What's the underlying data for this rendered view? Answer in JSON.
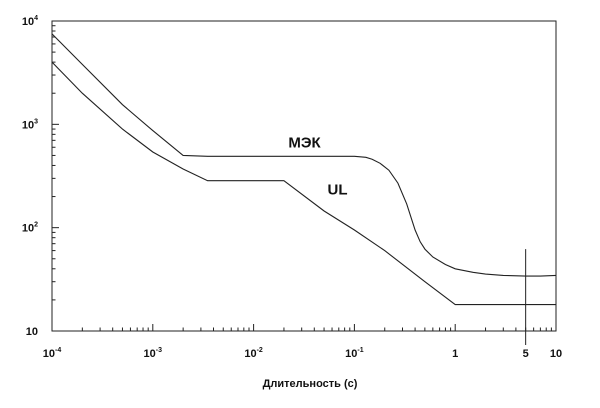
{
  "chart_data": {
    "type": "line",
    "x_scale": "log",
    "y_scale": "log",
    "xlabel": "Длительность (с)",
    "ylabel": "",
    "xlim": [
      0.0001,
      10
    ],
    "ylim": [
      10,
      10000
    ],
    "x_ticks": [
      {
        "value": 0.0001,
        "base": "10",
        "exp": "-4"
      },
      {
        "value": 0.001,
        "base": "10",
        "exp": "-3"
      },
      {
        "value": 0.01,
        "base": "10",
        "exp": "-2"
      },
      {
        "value": 0.1,
        "base": "10",
        "exp": "-1"
      },
      {
        "value": 1,
        "base": "1",
        "exp": ""
      },
      {
        "value": 5,
        "base": "5",
        "exp": ""
      },
      {
        "value": 10,
        "base": "10",
        "exp": ""
      }
    ],
    "y_ticks": [
      {
        "value": 10,
        "base": "10",
        "exp": ""
      },
      {
        "value": 100,
        "base": "10",
        "exp": "2"
      },
      {
        "value": 1000,
        "base": "10",
        "exp": "3"
      },
      {
        "value": 10000,
        "base": "10",
        "exp": "4"
      }
    ],
    "reference_lines": [
      {
        "axis": "x",
        "value": 5
      }
    ],
    "series": [
      {
        "name": "МЭК",
        "label_at": {
          "x": 0.032,
          "y": 600
        },
        "x": [
          0.0001,
          0.0002,
          0.0005,
          0.001,
          0.002,
          0.0035,
          0.01,
          0.03,
          0.1,
          0.13,
          0.15,
          0.18,
          0.22,
          0.27,
          0.33,
          0.4,
          0.45,
          0.5,
          0.6,
          0.8,
          1,
          1.5,
          2,
          3,
          5,
          7,
          10
        ],
        "values": [
          7500,
          3800,
          1550,
          870,
          500,
          490,
          490,
          490,
          490,
          480,
          460,
          420,
          360,
          270,
          170,
          95,
          73,
          62,
          52,
          44,
          40,
          37,
          35.5,
          34.5,
          34,
          34,
          34.5
        ]
      },
      {
        "name": "UL",
        "label_at": {
          "x": 0.068,
          "y": 210
        },
        "x": [
          0.0001,
          0.0002,
          0.0005,
          0.001,
          0.002,
          0.0035,
          0.005,
          0.01,
          0.02,
          0.05,
          0.1,
          0.2,
          0.5,
          1,
          2,
          5,
          10
        ],
        "values": [
          4000,
          2000,
          900,
          540,
          370,
          285,
          285,
          285,
          285,
          145,
          95,
          60,
          30,
          18,
          18,
          18,
          18
        ]
      }
    ]
  }
}
